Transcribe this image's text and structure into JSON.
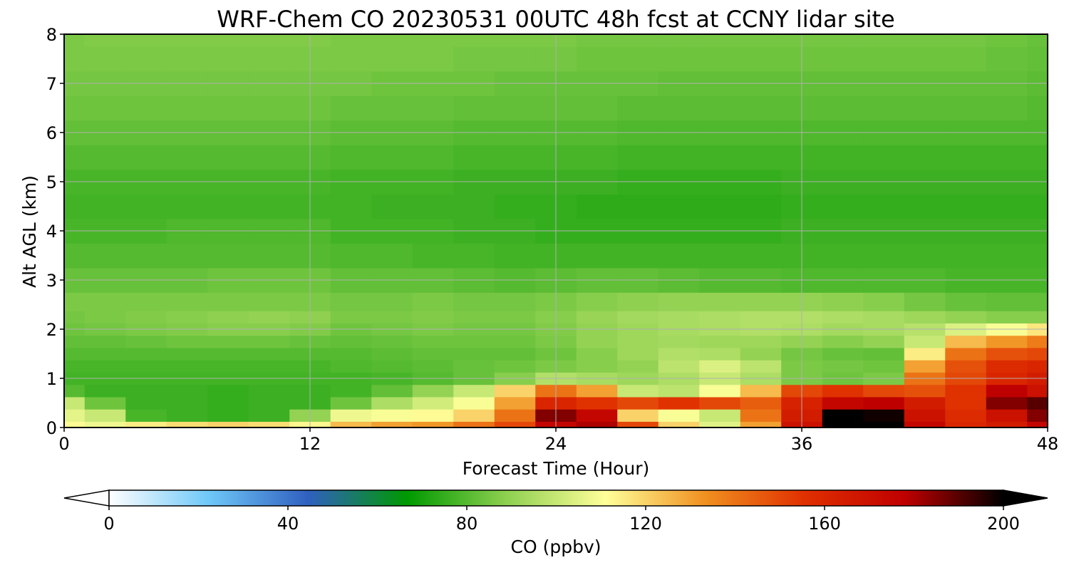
{
  "chart_data": {
    "type": "heatmap",
    "title": "WRF-Chem CO  20230531 00UTC 48h fcst at CCNY lidar site",
    "xlabel": "Forecast Time (Hour)",
    "ylabel": "Alt AGL (km)",
    "xlim": [
      0,
      48
    ],
    "ylim": [
      0,
      8
    ],
    "x_ticks": [
      0,
      12,
      24,
      36,
      48
    ],
    "y_ticks": [
      0,
      1,
      2,
      3,
      4,
      5,
      6,
      7,
      8
    ],
    "grid": true,
    "colorbar": {
      "label": "CO  (ppbv)",
      "vmin": 0,
      "vmax": 200,
      "ticks": [
        0,
        40,
        80,
        120,
        160,
        200
      ],
      "extend": "both",
      "colors": [
        "#ffffff",
        "#6fc8f8",
        "#3060c0",
        "#009900",
        "#8ed050",
        "#ffff99",
        "#f09020",
        "#e03000",
        "#c00000",
        "#000000"
      ]
    },
    "x": [
      0,
      2,
      4,
      6,
      8,
      10,
      12,
      14,
      16,
      18,
      20,
      22,
      24,
      26,
      28,
      30,
      32,
      34,
      36,
      38,
      40,
      42,
      44,
      46,
      48
    ],
    "y": [
      0,
      0.25,
      0.5,
      0.75,
      1,
      1.25,
      1.5,
      1.75,
      2,
      2.25,
      2.5,
      3,
      3.5,
      4,
      4.5,
      5,
      5.5,
      6,
      6.5,
      7,
      7.5,
      8
    ],
    "z": [
      [
        112,
        108,
        115,
        118,
        120,
        118,
        113,
        125,
        130,
        132,
        140,
        150,
        175,
        180,
        150,
        120,
        105,
        130,
        170,
        200,
        200,
        175,
        160,
        165,
        175
      ],
      [
        106,
        100,
        78,
        76,
        75,
        76,
        90,
        108,
        110,
        112,
        120,
        140,
        185,
        175,
        120,
        110,
        100,
        140,
        165,
        200,
        198,
        170,
        158,
        170,
        185
      ],
      [
        100,
        84,
        76,
        76,
        75,
        76,
        76,
        84,
        95,
        102,
        110,
        130,
        160,
        155,
        150,
        155,
        150,
        145,
        162,
        175,
        178,
        165,
        155,
        185,
        190
      ],
      [
        80,
        76,
        76,
        76,
        75,
        76,
        76,
        77,
        82,
        90,
        100,
        120,
        140,
        130,
        100,
        98,
        110,
        125,
        150,
        155,
        150,
        148,
        155,
        178,
        170
      ],
      [
        77,
        77,
        77,
        77,
        77,
        77,
        77,
        77,
        78,
        80,
        83,
        88,
        96,
        94,
        92,
        95,
        100,
        95,
        86,
        84,
        86,
        140,
        150,
        160,
        165
      ],
      [
        78,
        78,
        78,
        78,
        78,
        78,
        78,
        79,
        80,
        81,
        83,
        84,
        86,
        88,
        90,
        98,
        104,
        98,
        86,
        85,
        84,
        130,
        148,
        158,
        160
      ],
      [
        80,
        80,
        80,
        80,
        80,
        80,
        80,
        80,
        81,
        82,
        82,
        82,
        84,
        88,
        92,
        96,
        95,
        90,
        85,
        83,
        82,
        115,
        140,
        148,
        150
      ],
      [
        82,
        82,
        83,
        84,
        84,
        84,
        83,
        82,
        83,
        84,
        84,
        84,
        86,
        90,
        92,
        93,
        92,
        92,
        90,
        88,
        90,
        100,
        125,
        132,
        138
      ],
      [
        84,
        85,
        86,
        87,
        88,
        88,
        87,
        84,
        85,
        86,
        85,
        85,
        87,
        90,
        92,
        94,
        95,
        96,
        95,
        93,
        94,
        97,
        104,
        110,
        116
      ],
      [
        85,
        86,
        87,
        88,
        89,
        90,
        89,
        86,
        86,
        87,
        86,
        86,
        88,
        91,
        93,
        94,
        95,
        96,
        96,
        95,
        94,
        92,
        90,
        88,
        88
      ],
      [
        86,
        86,
        86,
        86,
        86,
        86,
        86,
        85,
        85,
        86,
        85,
        85,
        86,
        88,
        89,
        90,
        90,
        90,
        90,
        89,
        88,
        85,
        83,
        82,
        82
      ],
      [
        83,
        83,
        83,
        83,
        84,
        84,
        84,
        82,
        82,
        82,
        81,
        80,
        81,
        82,
        82,
        81,
        80,
        80,
        79,
        79,
        79,
        79,
        78,
        78,
        78
      ],
      [
        80,
        80,
        80,
        80,
        80,
        80,
        80,
        79,
        79,
        78,
        78,
        77,
        77,
        77,
        77,
        77,
        77,
        77,
        77,
        77,
        77,
        77,
        77,
        77,
        77
      ],
      [
        78,
        78,
        78,
        79,
        79,
        79,
        79,
        77,
        77,
        77,
        76,
        76,
        75,
        75,
        75,
        75,
        75,
        75,
        76,
        76,
        76,
        76,
        76,
        76,
        76
      ],
      [
        77,
        77,
        77,
        77,
        77,
        77,
        77,
        77,
        76,
        76,
        76,
        75,
        75,
        74,
        74,
        74,
        74,
        74,
        75,
        75,
        75,
        75,
        75,
        75,
        75
      ],
      [
        78,
        78,
        78,
        78,
        78,
        78,
        78,
        77,
        77,
        77,
        76,
        76,
        76,
        76,
        75,
        75,
        75,
        75,
        76,
        76,
        76,
        76,
        76,
        76,
        76
      ],
      [
        80,
        80,
        80,
        80,
        80,
        80,
        80,
        79,
        79,
        79,
        78,
        78,
        78,
        78,
        77,
        77,
        77,
        77,
        77,
        77,
        77,
        77,
        77,
        77,
        77
      ],
      [
        82,
        82,
        82,
        82,
        82,
        82,
        82,
        81,
        81,
        81,
        80,
        80,
        80,
        80,
        79,
        79,
        79,
        79,
        79,
        79,
        79,
        79,
        79,
        79,
        79
      ],
      [
        84,
        84,
        84,
        84,
        84,
        84,
        84,
        83,
        83,
        83,
        82,
        82,
        82,
        82,
        81,
        81,
        81,
        81,
        81,
        81,
        81,
        81,
        81,
        81,
        80
      ],
      [
        85,
        85,
        85,
        85,
        85,
        85,
        85,
        85,
        84,
        84,
        84,
        83,
        83,
        83,
        83,
        82,
        82,
        82,
        82,
        82,
        82,
        82,
        82,
        82,
        81
      ],
      [
        86,
        86,
        86,
        86,
        86,
        86,
        86,
        86,
        86,
        86,
        85,
        85,
        85,
        84,
        84,
        84,
        84,
        84,
        84,
        84,
        84,
        84,
        84,
        83,
        82
      ],
      [
        86,
        87,
        87,
        87,
        87,
        87,
        87,
        86,
        86,
        86,
        86,
        86,
        86,
        85,
        85,
        85,
        85,
        85,
        85,
        85,
        85,
        85,
        85,
        84,
        83
      ]
    ]
  }
}
